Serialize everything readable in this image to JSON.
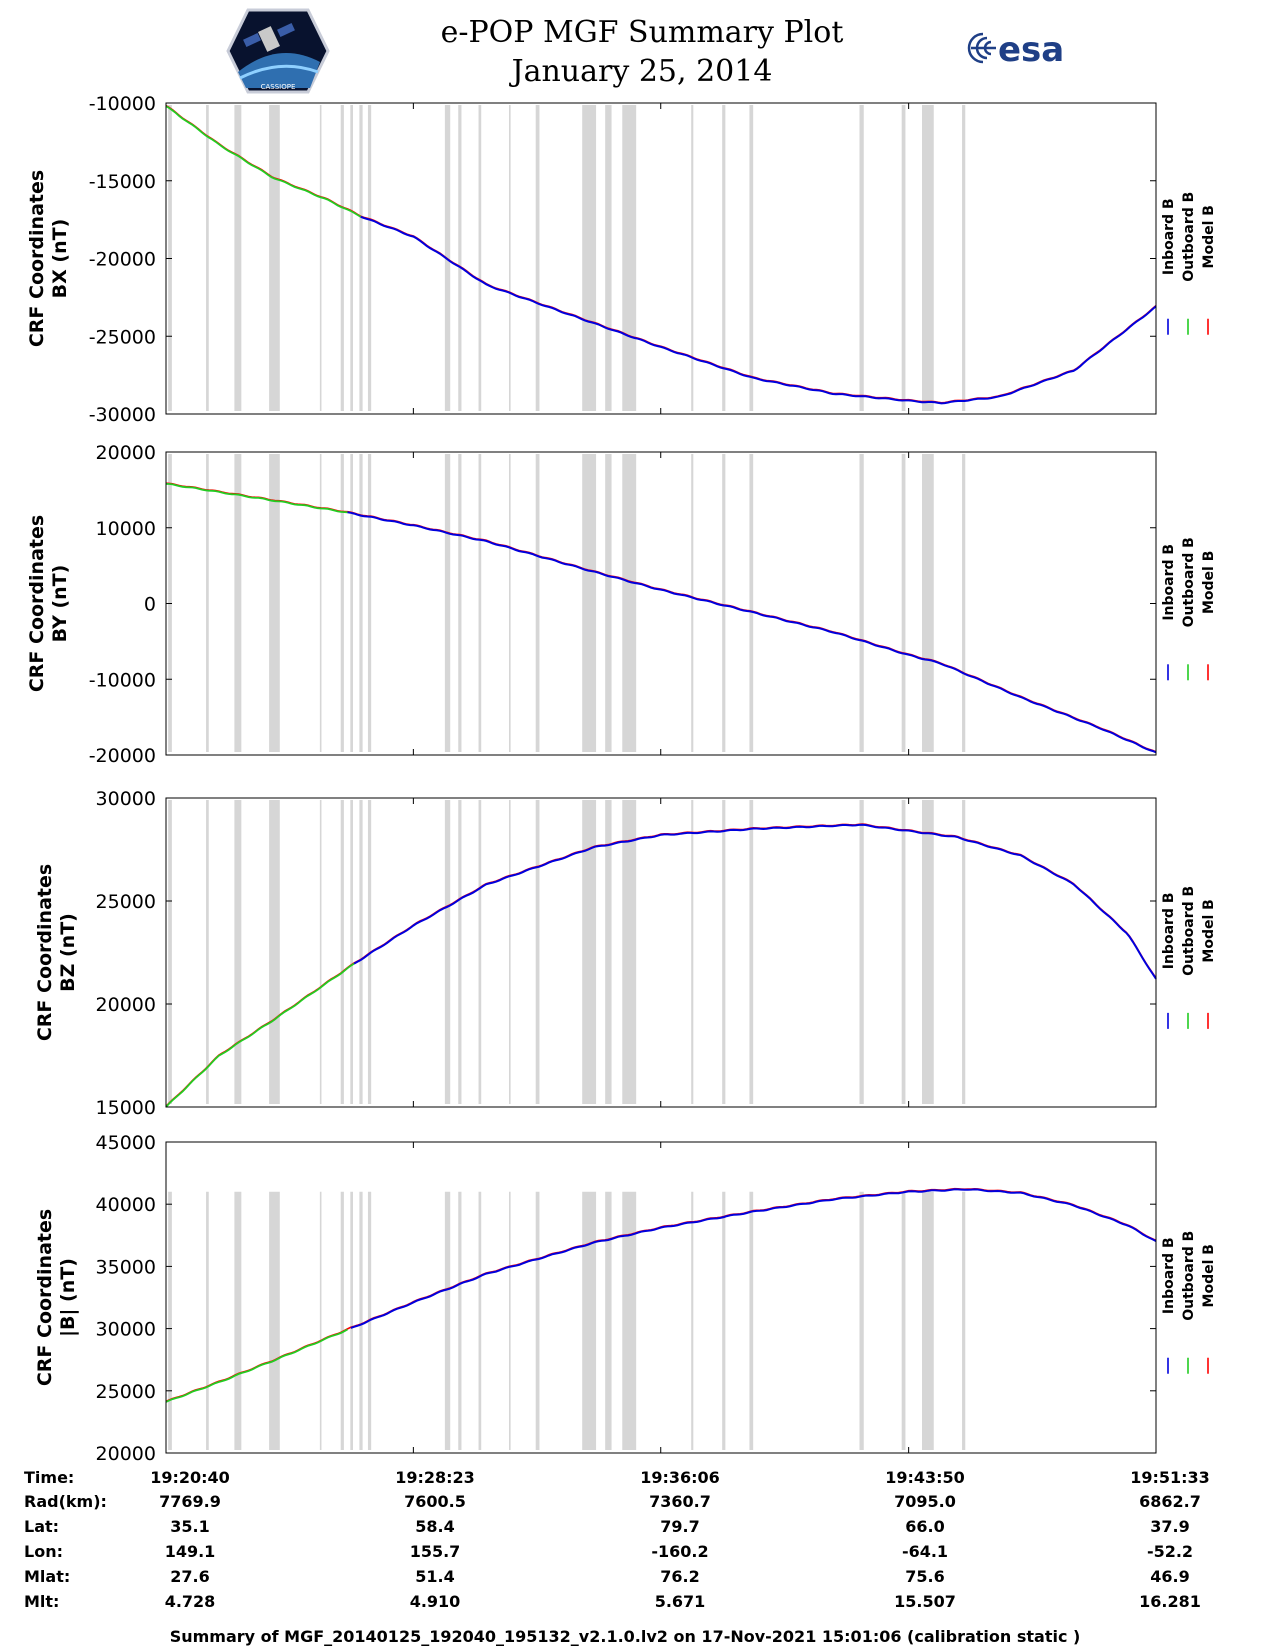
{
  "title_line1": "e-POP MGF Summary Plot",
  "title_line2": "January 25, 2014",
  "esa_label": "esa",
  "cassiope_label": "CASSIOPE",
  "footer": "Summary of MGF_20140125_192040_195132_v2.1.0.lv2 on 17-Nov-2021 15:01:06 (calibration static )",
  "colors": {
    "inboard": "#0000dd",
    "outboard": "#22cc22",
    "model": "#ff0000",
    "gap": "#d6d6d6"
  },
  "chart_data": {
    "type": "line",
    "x_range_sec": [
      0,
      1853
    ],
    "x_tick_positions_sec": [
      0,
      463,
      926,
      1390,
      1853
    ],
    "legend": [
      "Inboard B",
      "Outboard B",
      "Model B"
    ],
    "gaps_sec": [
      [
        4,
        11
      ],
      [
        75,
        80
      ],
      [
        128,
        141
      ],
      [
        193,
        213
      ],
      [
        288,
        291
      ],
      [
        327,
        333
      ],
      [
        345,
        350
      ],
      [
        362,
        368
      ],
      [
        378,
        384
      ],
      [
        522,
        532
      ],
      [
        547,
        553
      ],
      [
        585,
        590
      ],
      [
        642,
        645
      ],
      [
        692,
        699
      ],
      [
        779,
        805
      ],
      [
        822,
        834
      ],
      [
        854,
        880
      ],
      [
        983,
        987
      ],
      [
        1041,
        1047
      ],
      [
        1092,
        1099
      ],
      [
        1298,
        1306
      ],
      [
        1377,
        1384
      ],
      [
        1415,
        1437
      ],
      [
        1490,
        1496
      ]
    ],
    "panels": [
      {
        "id": "bx",
        "ylabel_line1": "CRF Coordinates",
        "ylabel_line2": "BX (nT)",
        "ylim": [
          -30000,
          -10000
        ],
        "yticks": [
          -10000,
          -15000,
          -20000,
          -25000,
          -30000
        ],
        "outboard_end_sec": 365,
        "x": [
          0,
          100,
          200,
          300,
          365,
          463,
          600,
          926,
          1100,
          1250,
          1390,
          1450,
          1560,
          1700,
          1853
        ],
        "values": [
          -10200,
          -12700,
          -14800,
          -16200,
          -17300,
          -18600,
          -21700,
          -25700,
          -27700,
          -28700,
          -29150,
          -29300,
          -28900,
          -27200,
          -23100
        ]
      },
      {
        "id": "by",
        "ylabel_line1": "CRF Coordinates",
        "ylabel_line2": "BY (nT)",
        "ylim": [
          -20000,
          20000
        ],
        "yticks": [
          20000,
          10000,
          0,
          -10000,
          -20000
        ],
        "outboard_end_sec": 340,
        "x": [
          0,
          200,
          340,
          463,
          600,
          800,
          926,
          1100,
          1250,
          1390,
          1450,
          1600,
          1750,
          1853
        ],
        "values": [
          15800,
          13600,
          12000,
          10300,
          8200,
          4200,
          1800,
          -1200,
          -3800,
          -6800,
          -7900,
          -12400,
          -16500,
          -19700
        ]
      },
      {
        "id": "bz",
        "ylabel_line1": "CRF Coordinates",
        "ylabel_line2": "BZ (nT)",
        "ylim": [
          15000,
          30000
        ],
        "yticks": [
          30000,
          25000,
          20000,
          15000
        ],
        "outboard_end_sec": 355,
        "x": [
          0,
          100,
          200,
          300,
          355,
          463,
          600,
          800,
          926,
          1100,
          1200,
          1300,
          1390,
          1480,
          1600,
          1700,
          1800,
          1853
        ],
        "values": [
          15000,
          17500,
          19200,
          21000,
          22000,
          23800,
          25800,
          27600,
          28200,
          28500,
          28600,
          28700,
          28400,
          28100,
          27200,
          25800,
          23400,
          21200
        ]
      },
      {
        "id": "bmag",
        "ylabel_line1": "CRF Coordinates",
        "ylabel_line2": "|B| (nT)",
        "ylim": [
          20000,
          45000
        ],
        "yticks": [
          45000,
          40000,
          35000,
          30000,
          25000,
          20000
        ],
        "outboard_end_sec": 345,
        "x": [
          0,
          100,
          200,
          345,
          463,
          600,
          800,
          926,
          1100,
          1250,
          1390,
          1500,
          1600,
          1700,
          1800,
          1853
        ],
        "values": [
          24100,
          25700,
          27400,
          30000,
          32100,
          34400,
          36900,
          38100,
          39400,
          40400,
          41000,
          41200,
          40900,
          39900,
          38300,
          37000
        ]
      }
    ]
  },
  "info_table": {
    "row_labels": [
      "Time:",
      "Rad(km):",
      "Lat:",
      "Lon:",
      "Mlat:",
      "Mlt:"
    ],
    "columns": [
      [
        "19:20:40",
        "7769.9",
        "35.1",
        "149.1",
        "27.6",
        "4.728"
      ],
      [
        "19:28:23",
        "7600.5",
        "58.4",
        "155.7",
        "51.4",
        "4.910"
      ],
      [
        "19:36:06",
        "7360.7",
        "79.7",
        "-160.2",
        "76.2",
        "5.671"
      ],
      [
        "19:43:50",
        "7095.0",
        "66.0",
        "-64.1",
        "75.6",
        "15.507"
      ],
      [
        "19:51:33",
        "6862.7",
        "37.9",
        "-52.2",
        "46.9",
        "16.281"
      ]
    ]
  }
}
